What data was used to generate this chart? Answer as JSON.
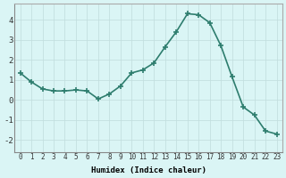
{
  "x": [
    0,
    1,
    2,
    3,
    4,
    5,
    6,
    7,
    8,
    9,
    10,
    11,
    12,
    13,
    14,
    15,
    16,
    17,
    18,
    19,
    20,
    21,
    22,
    23
  ],
  "y": [
    1.35,
    0.9,
    0.55,
    0.45,
    0.45,
    0.5,
    0.45,
    0.05,
    0.3,
    0.7,
    1.35,
    1.5,
    1.85,
    2.65,
    3.4,
    4.3,
    4.25,
    3.85,
    2.7,
    1.15,
    -0.35,
    -0.75,
    -1.55,
    -1.7
  ],
  "xlim": [
    -0.5,
    23.5
  ],
  "ylim": [
    -2.6,
    4.8
  ],
  "yticks": [
    -2,
    -1,
    0,
    1,
    2,
    3,
    4
  ],
  "xtick_labels": [
    "0",
    "1",
    "2",
    "3",
    "4",
    "5",
    "6",
    "7",
    "8",
    "9",
    "10",
    "11",
    "12",
    "13",
    "14",
    "15",
    "16",
    "17",
    "18",
    "19",
    "20",
    "21",
    "22",
    "23"
  ],
  "xlabel": "Humidex (Indice chaleur)",
  "line_color": "#2e7d6e",
  "marker": "+",
  "marker_size": 4,
  "marker_lw": 1.2,
  "line_width": 1.2,
  "bg_color": "#daf5f5",
  "grid_color": "#c0dcdc",
  "xlabel_fontsize": 6.5,
  "tick_fontsize": 5.5,
  "ytick_fontsize": 6.5
}
